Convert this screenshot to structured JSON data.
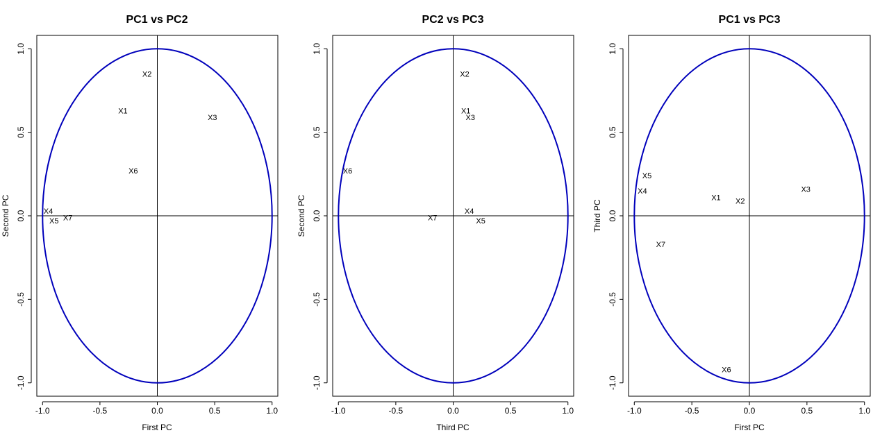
{
  "colors": {
    "circle": "#0000bb",
    "ink": "#000000",
    "background": "#ffffff"
  },
  "chart_data": [
    {
      "type": "scatter",
      "title": "PC1 vs PC2",
      "xlabel": "First PC",
      "ylabel": "Second PC",
      "xlim": [
        -1.05,
        1.05
      ],
      "ylim": [
        -1.08,
        1.08
      ],
      "xticks": [
        -1.0,
        -0.5,
        0.0,
        0.5,
        1.0
      ],
      "xtick_labels": [
        "-1.0",
        "-0.5",
        "0.0",
        "0.5",
        "1.0"
      ],
      "yticks": [
        -1.0,
        -0.5,
        0.0,
        0.5,
        1.0
      ],
      "ytick_labels": [
        "-1.0",
        "-0.5",
        "0.0",
        "0.5",
        "1.0"
      ],
      "unit_circle": true,
      "reference_lines": {
        "x": 0,
        "y": 0
      },
      "points": [
        {
          "label": "X1",
          "x": -0.3,
          "y": 0.63
        },
        {
          "label": "X2",
          "x": -0.09,
          "y": 0.85
        },
        {
          "label": "X3",
          "x": 0.48,
          "y": 0.59
        },
        {
          "label": "X4",
          "x": -0.95,
          "y": 0.03
        },
        {
          "label": "X5",
          "x": -0.9,
          "y": -0.03
        },
        {
          "label": "X6",
          "x": -0.21,
          "y": 0.27
        },
        {
          "label": "X7",
          "x": -0.78,
          "y": -0.01
        }
      ]
    },
    {
      "type": "scatter",
      "title": "PC2 vs PC3",
      "xlabel": "Third PC",
      "ylabel": "Second PC",
      "xlim": [
        -1.05,
        1.05
      ],
      "ylim": [
        -1.08,
        1.08
      ],
      "xticks": [
        -1.0,
        -0.5,
        0.0,
        0.5,
        1.0
      ],
      "xtick_labels": [
        "-1.0",
        "-0.5",
        "0.0",
        "0.5",
        "1.0"
      ],
      "yticks": [
        -1.0,
        -0.5,
        0.0,
        0.5,
        1.0
      ],
      "ytick_labels": [
        "-1.0",
        "-0.5",
        "0.0",
        "0.5",
        "1.0"
      ],
      "unit_circle": true,
      "reference_lines": {
        "x": 0,
        "y": 0
      },
      "points": [
        {
          "label": "X1",
          "x": 0.11,
          "y": 0.63
        },
        {
          "label": "X2",
          "x": 0.1,
          "y": 0.85
        },
        {
          "label": "X3",
          "x": 0.15,
          "y": 0.59
        },
        {
          "label": "X4",
          "x": 0.14,
          "y": 0.03
        },
        {
          "label": "X5",
          "x": 0.24,
          "y": -0.03
        },
        {
          "label": "X6",
          "x": -0.92,
          "y": 0.27
        },
        {
          "label": "X7",
          "x": -0.18,
          "y": -0.01
        }
      ]
    },
    {
      "type": "scatter",
      "title": "PC1 vs PC3",
      "xlabel": "First PC",
      "ylabel": "Third PC",
      "xlim": [
        -1.05,
        1.05
      ],
      "ylim": [
        -1.08,
        1.08
      ],
      "xticks": [
        -1.0,
        -0.5,
        0.0,
        0.5,
        1.0
      ],
      "xtick_labels": [
        "-1.0",
        "-0.5",
        "0.0",
        "0.5",
        "1.0"
      ],
      "yticks": [
        -1.0,
        -0.5,
        0.0,
        0.5,
        1.0
      ],
      "ytick_labels": [
        "-1.0",
        "-0.5",
        "0.0",
        "0.5",
        "1.0"
      ],
      "unit_circle": true,
      "reference_lines": {
        "x": 0,
        "y": 0
      },
      "points": [
        {
          "label": "X1",
          "x": -0.29,
          "y": 0.11
        },
        {
          "label": "X2",
          "x": -0.08,
          "y": 0.09
        },
        {
          "label": "X3",
          "x": 0.49,
          "y": 0.16
        },
        {
          "label": "X4",
          "x": -0.93,
          "y": 0.15
        },
        {
          "label": "X5",
          "x": -0.89,
          "y": 0.24
        },
        {
          "label": "X6",
          "x": -0.2,
          "y": -0.92
        },
        {
          "label": "X7",
          "x": -0.77,
          "y": -0.17
        }
      ]
    }
  ]
}
